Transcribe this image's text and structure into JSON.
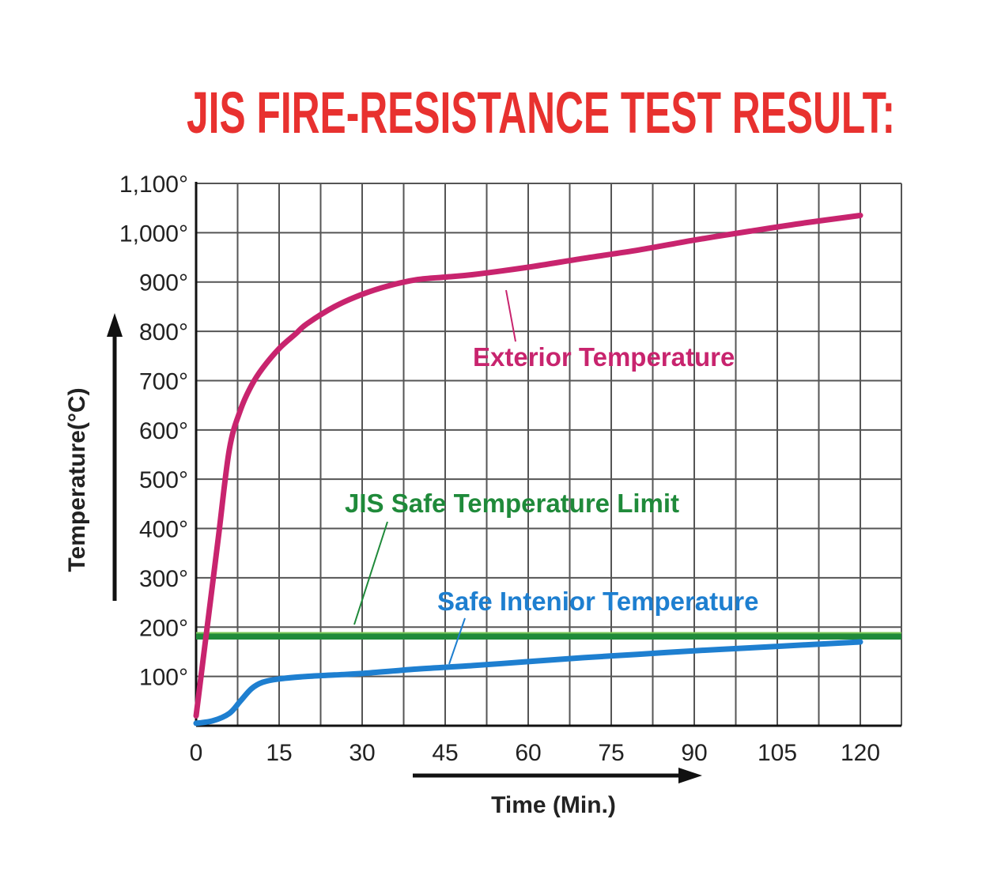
{
  "chart_data": {
    "type": "line",
    "title": "JIS FIRE-RESISTANCE TEST RESULT:",
    "xlabel": "Time (Min.)",
    "ylabel": "Temperature(°C)",
    "xlim": [
      0,
      120
    ],
    "ylim": [
      0,
      1100
    ],
    "x_ticks": [
      0,
      15,
      30,
      45,
      60,
      75,
      90,
      105,
      120
    ],
    "x_tick_labels": [
      "0",
      "15",
      "30",
      "45",
      "60",
      "75",
      "90",
      "105",
      "120"
    ],
    "y_ticks": [
      100,
      200,
      300,
      400,
      500,
      600,
      700,
      800,
      900,
      1000,
      1100
    ],
    "y_tick_labels": [
      "100°",
      "200°",
      "300°",
      "400°",
      "500°",
      "600°",
      "700°",
      "800°",
      "900°",
      "1,000°",
      "1,100°"
    ],
    "grid": true,
    "series": [
      {
        "name": "Exterior Temperature",
        "color": "#c8246e",
        "x": [
          0,
          2,
          4,
          6,
          8,
          10,
          12,
          15,
          18,
          20,
          25,
          30,
          35,
          40,
          45,
          50,
          60,
          70,
          80,
          90,
          100,
          110,
          120
        ],
        "y": [
          20,
          200,
          380,
          560,
          640,
          690,
          725,
          765,
          795,
          815,
          850,
          875,
          893,
          905,
          910,
          915,
          930,
          948,
          965,
          985,
          1003,
          1020,
          1035
        ]
      },
      {
        "name": "JIS Safe Temperature Limit",
        "color": "#1f8a3a",
        "x": [
          0,
          128
        ],
        "y": [
          182,
          182
        ]
      },
      {
        "name": "Safe Intenior Temperature",
        "color": "#1e7fd0",
        "x": [
          0,
          3,
          6,
          8,
          10,
          12,
          15,
          20,
          25,
          30,
          40,
          50,
          60,
          70,
          80,
          90,
          100,
          110,
          120
        ],
        "y": [
          5,
          10,
          25,
          50,
          75,
          88,
          95,
          100,
          103,
          106,
          115,
          122,
          130,
          138,
          145,
          152,
          158,
          164,
          170
        ]
      }
    ],
    "colors": {
      "title": "#e8312f",
      "axis": "#111111",
      "grid": "#555555"
    }
  }
}
